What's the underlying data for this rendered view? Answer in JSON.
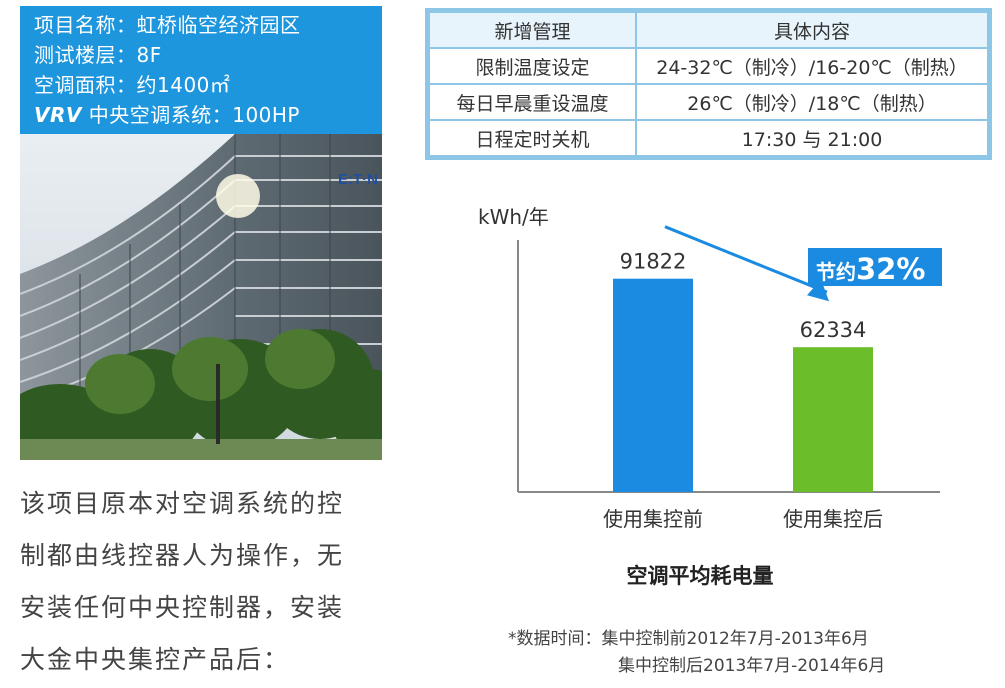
{
  "info": {
    "project": "项目名称：虹桥临空经济园区",
    "floor": "测试楼层：8F",
    "area": "空调面积：约1400㎡",
    "vrv_label": "VRV",
    "vrv_rest": " 中央空调系统：100HP"
  },
  "paragraph": {
    "line1": "该项目原本对空调系统的控",
    "line2": "制都由线控器人为操作，无",
    "line3": "安装任何中央控制器，安装",
    "line4": "大金中央集控产品后："
  },
  "table": {
    "headers": [
      "新增管理",
      "具体内容"
    ],
    "rows": [
      [
        "限制温度设定",
        "24-32℃（制冷）/16-20℃（制热）"
      ],
      [
        "每日早晨重设温度",
        "26℃（制冷）/18℃（制热）"
      ],
      [
        "日程定时关机",
        "17:30 与 21:00"
      ]
    ]
  },
  "chart_data": {
    "type": "bar",
    "title": "空调平均耗电量",
    "ylabel": "kWh/年",
    "categories": [
      "使用集控前",
      "使用集控后"
    ],
    "values": [
      91822,
      62334
    ],
    "bar_colors": [
      "#1a8be0",
      "#6cbd2a"
    ],
    "ylim": [
      0,
      130000
    ],
    "annotation": {
      "prefix": "节约",
      "value": "32%",
      "color": "#1a8be0"
    },
    "arrow_color": "#1a8be0"
  },
  "note": {
    "line1": "*数据时间：集中控制前2012年7月-2013年6月",
    "line2": "集中控制后2013年7月-2014年6月"
  },
  "photo": {
    "logo_text": "E:T·N",
    "icon": "building-photo"
  }
}
